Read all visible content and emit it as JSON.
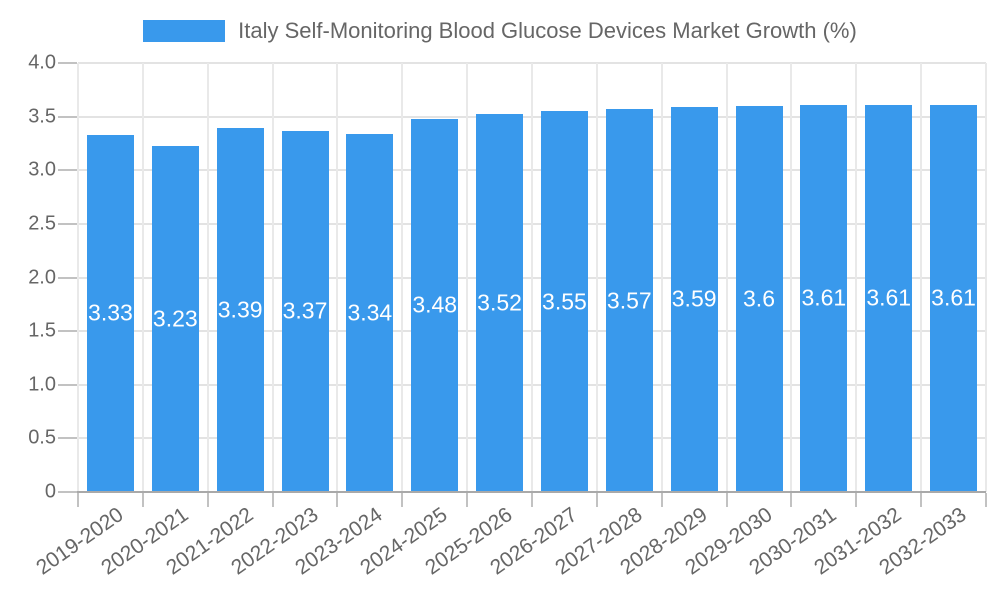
{
  "chart_data": {
    "type": "bar",
    "title": "Italy Self-Monitoring Blood Glucose Devices Market Growth (%)",
    "xlabel": "",
    "ylabel": "",
    "categories": [
      "2019-2020",
      "2020-2021",
      "2021-2022",
      "2022-2023",
      "2023-2024",
      "2024-2025",
      "2025-2026",
      "2026-2027",
      "2027-2028",
      "2028-2029",
      "2029-2030",
      "2030-2031",
      "2031-2032",
      "2032-2033"
    ],
    "values": [
      3.33,
      3.23,
      3.39,
      3.37,
      3.34,
      3.48,
      3.52,
      3.55,
      3.57,
      3.59,
      3.6,
      3.61,
      3.61,
      3.61
    ],
    "value_labels": [
      "3.33",
      "3.23",
      "3.39",
      "3.37",
      "3.34",
      "3.48",
      "3.52",
      "3.55",
      "3.57",
      "3.59",
      "3.6",
      "3.61",
      "3.61",
      "3.61"
    ],
    "ylim": [
      0,
      4
    ],
    "y_ticks": [
      0,
      0.5,
      1,
      1.5,
      2,
      2.5,
      3,
      3.5,
      4
    ],
    "y_tick_labels": [
      "0",
      "0.5",
      "1.0",
      "1.5",
      "2.0",
      "2.5",
      "3.0",
      "3.5",
      "4.0"
    ],
    "grid": true,
    "legend_position": "top",
    "colors": {
      "bar": "#3999ec",
      "value_text": "#ffffff",
      "axis_text": "#666666",
      "legend_text": "#666666",
      "axis_line": "#a9a9a9",
      "tick_line": "#c2c2c2",
      "grid_h": "#e3e3e3",
      "grid_v": "#e9e9e9",
      "background": "#ffffff"
    }
  }
}
